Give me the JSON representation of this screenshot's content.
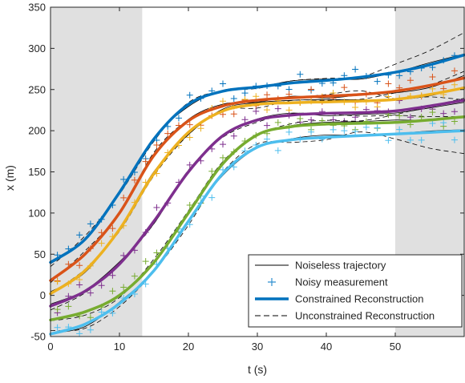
{
  "chart_data": {
    "type": "line",
    "title": "",
    "xlabel": "t (s)",
    "ylabel": "x (m)",
    "xlim": [
      0,
      60
    ],
    "ylim": [
      -50,
      350
    ],
    "xticks": [
      0,
      10,
      20,
      30,
      40,
      50
    ],
    "yticks": [
      -50,
      0,
      50,
      100,
      150,
      200,
      250,
      300,
      350
    ],
    "shaded_regions": [
      [
        0,
        13.3
      ],
      [
        50,
        60
      ]
    ],
    "shade_color": "#e0e0e0",
    "grid": false,
    "legend_position": "bottom-right",
    "legend": [
      {
        "label": "Noiseless trajectory",
        "style": "thin-solid",
        "color": "#000000"
      },
      {
        "label": "Noisy measurement",
        "style": "plus-marker",
        "color": "#2f8fd0"
      },
      {
        "label": "Constrained Reconstruction",
        "style": "thick-solid",
        "color": "#0072bd"
      },
      {
        "label": "Unconstrained Reconstruction",
        "style": "dashed",
        "color": "#000000"
      }
    ],
    "series": [
      {
        "color": "#0072bd",
        "x": [
          0,
          5,
          10,
          15,
          20,
          25,
          30,
          35,
          40,
          45,
          50,
          55,
          60
        ],
        "y": [
          40,
          68,
          125,
          190,
          232,
          248,
          253,
          258,
          261,
          265,
          271,
          280,
          292
        ]
      },
      {
        "color": "#d95319",
        "x": [
          0,
          5,
          10,
          15,
          20,
          25,
          30,
          35,
          40,
          45,
          50,
          55,
          60
        ],
        "y": [
          18,
          50,
          100,
          170,
          212,
          230,
          237,
          240,
          242,
          244,
          248,
          255,
          264
        ]
      },
      {
        "color": "#edb120",
        "x": [
          0,
          5,
          10,
          15,
          20,
          25,
          30,
          35,
          40,
          45,
          50,
          55,
          60
        ],
        "y": [
          2,
          30,
          80,
          148,
          198,
          224,
          232,
          234,
          235,
          236,
          238,
          244,
          252
        ]
      },
      {
        "color": "#7e2f8e",
        "x": [
          0,
          5,
          10,
          15,
          20,
          25,
          30,
          35,
          40,
          45,
          50,
          55,
          60
        ],
        "y": [
          -13,
          5,
          38,
          90,
          150,
          194,
          213,
          219,
          221,
          222,
          224,
          230,
          237
        ]
      },
      {
        "color": "#77ac30",
        "x": [
          0,
          5,
          10,
          15,
          20,
          25,
          30,
          35,
          40,
          45,
          50,
          55,
          60
        ],
        "y": [
          -30,
          -20,
          0,
          40,
          100,
          160,
          195,
          205,
          208,
          209,
          210,
          213,
          217
        ]
      },
      {
        "color": "#4dbeee",
        "x": [
          0,
          5,
          10,
          15,
          20,
          25,
          30,
          35,
          40,
          45,
          50,
          55,
          60
        ],
        "y": [
          -47,
          -35,
          -10,
          30,
          90,
          148,
          180,
          189,
          192,
          194,
          196,
          198,
          200
        ]
      }
    ]
  }
}
